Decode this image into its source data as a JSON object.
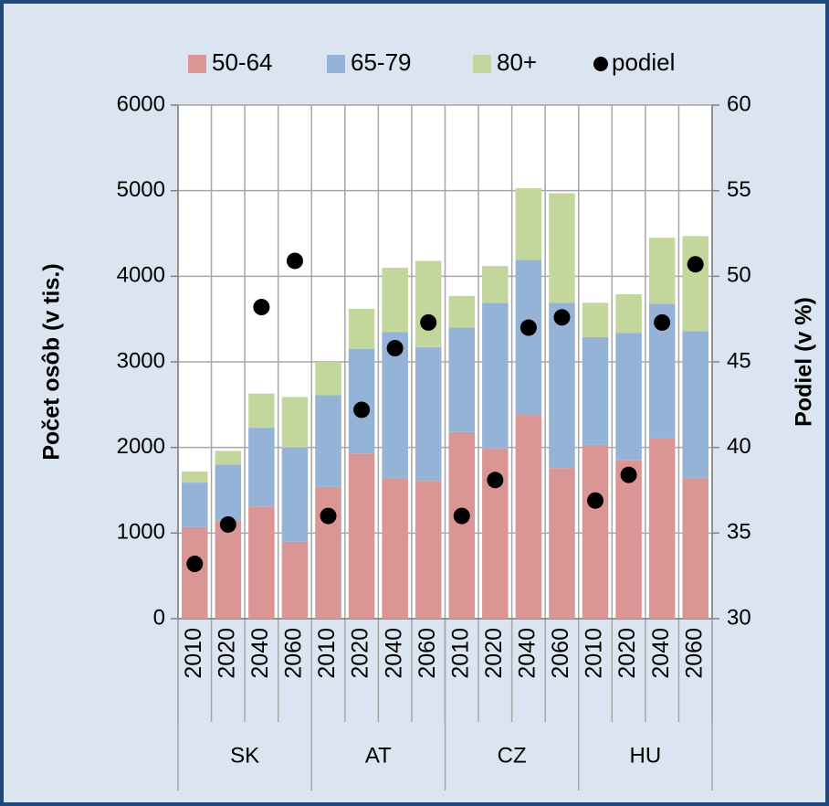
{
  "chart_data": {
    "type": "bar",
    "stacked": true,
    "ylabel": "Počet osôb (v tis.)",
    "y2label": "Podiel (v %)",
    "categories": [
      "2010",
      "2020",
      "2040",
      "2060",
      "2010",
      "2020",
      "2040",
      "2060",
      "2010",
      "2020",
      "2040",
      "2060",
      "2010",
      "2020",
      "2040",
      "2060"
    ],
    "groups": [
      {
        "label": "SK",
        "size": 4
      },
      {
        "label": "AT",
        "size": 4
      },
      {
        "label": "CZ",
        "size": 4
      },
      {
        "label": "HU",
        "size": 4
      }
    ],
    "series": [
      {
        "name": "50-64",
        "color": "#d99694",
        "values": [
          1070,
          1150,
          1310,
          900,
          1540,
          1930,
          1640,
          1610,
          2180,
          1990,
          2380,
          1760,
          2030,
          1850,
          2110,
          1640
        ]
      },
      {
        "name": "65-79",
        "color": "#95b3d7",
        "values": [
          520,
          650,
          920,
          1100,
          1070,
          1220,
          1710,
          1560,
          1220,
          1700,
          1810,
          1930,
          1260,
          1490,
          1570,
          1720
        ]
      },
      {
        "name": "80+",
        "color": "#c3d69b",
        "values": [
          130,
          160,
          400,
          590,
          390,
          470,
          750,
          1010,
          370,
          430,
          840,
          1280,
          400,
          450,
          770,
          1110
        ]
      },
      {
        "name": "podiel",
        "color": "#000000",
        "type": "scatter",
        "axis": "y2",
        "values": [
          33.2,
          35.5,
          48.2,
          50.9,
          36.0,
          42.2,
          45.8,
          47.3,
          36.0,
          38.1,
          47.0,
          47.6,
          36.9,
          38.4,
          47.3,
          50.7
        ]
      }
    ],
    "ylim": [
      0,
      6000
    ],
    "yticks": [
      0,
      1000,
      2000,
      3000,
      4000,
      5000,
      6000
    ],
    "y2lim": [
      30,
      60
    ],
    "y2ticks": [
      30,
      35,
      40,
      45,
      50,
      55,
      60
    ],
    "grid": true,
    "legend": "top"
  }
}
